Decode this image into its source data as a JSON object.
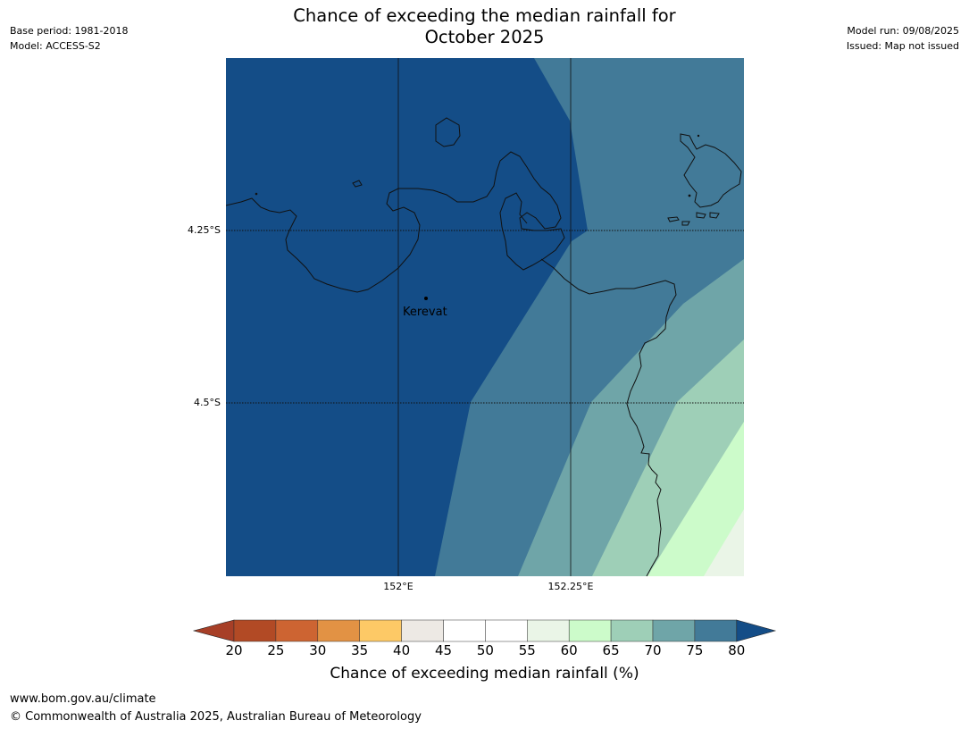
{
  "title_line1": "Chance of exceeding the median rainfall for",
  "title_line2": "October 2025",
  "meta_left": {
    "base_period": "Base period: 1981-2018",
    "model": "Model: ACCESS-S2"
  },
  "meta_right": {
    "model_run": "Model run: 09/08/2025",
    "issued": "Issued: Map not issued"
  },
  "map": {
    "lat_labels": [
      "4.25°S",
      "4.5°S"
    ],
    "lon_labels": [
      "152°E",
      "152.25°E"
    ],
    "place": {
      "name": "Kerevat"
    }
  },
  "colorbar": {
    "ticks": [
      "20",
      "25",
      "30",
      "35",
      "40",
      "45",
      "50",
      "55",
      "60",
      "65",
      "70",
      "75",
      "80"
    ],
    "label": "Chance of exceeding median rainfall (%)",
    "colors": [
      "#a73f27",
      "#b24a25",
      "#cd6432",
      "#e29244",
      "#fdc966",
      "#ede9e4",
      "#ffffff",
      "#ffffff",
      "#eaf5e7",
      "#ccfbca",
      "#9ecfb7",
      "#6fa5a8",
      "#427a98",
      "#144d87",
      "#144d87"
    ]
  },
  "footer": {
    "url": "www.bom.gov.au/climate",
    "copyright": "© Commonwealth of Australia 2025, Australian Bureau of Meteorology"
  }
}
